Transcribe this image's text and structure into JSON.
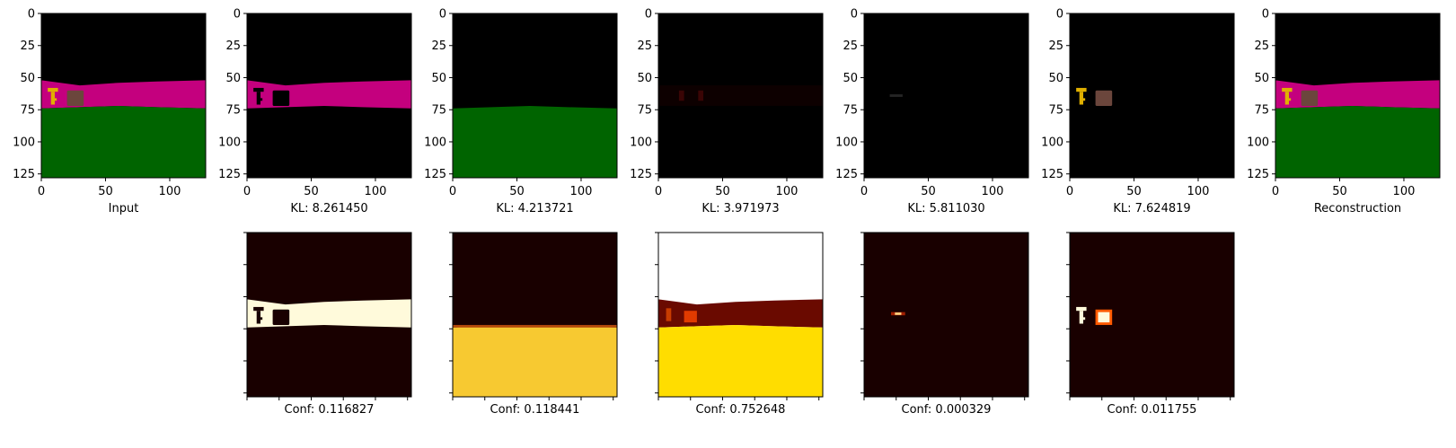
{
  "figure": {
    "colors": {
      "black": "#000000",
      "magenta": "#c4007e",
      "green": "#006400",
      "key_yellow": "#e0b000",
      "box_brown": "#6b463c",
      "heat_dark": "#190000",
      "heat_bright": "#fffadb",
      "heat_yellow": "#ffdd00"
    },
    "top_row": [
      {
        "caption": "Input",
        "content": "scene_full"
      },
      {
        "caption": "KL: 8.261450",
        "content": "wall_band"
      },
      {
        "caption": "KL: 4.213721",
        "content": "floor"
      },
      {
        "caption": "KL: 3.971973",
        "content": "faint_objects"
      },
      {
        "caption": "KL: 5.811030",
        "content": "faint_dot"
      },
      {
        "caption": "KL: 7.624819",
        "content": "objects_only"
      },
      {
        "caption": "Reconstruction",
        "content": "scene_full"
      }
    ],
    "bottom_row": [
      {
        "caption": "Conf: 0.116827",
        "content": "heat_band"
      },
      {
        "caption": "Conf: 0.118441",
        "content": "heat_floor"
      },
      {
        "caption": "Conf: 0.752648",
        "content": "heat_sky_floor"
      },
      {
        "caption": "Conf: 0.000329",
        "content": "heat_dot"
      },
      {
        "caption": "Conf: 0.011755",
        "content": "heat_objects"
      }
    ]
  },
  "chart_data": {
    "type": "heatmap",
    "image_size": [
      128,
      128
    ],
    "x_ticks": [
      "0",
      "50",
      "100"
    ],
    "y_ticks": [
      "0",
      "25",
      "50",
      "75",
      "100",
      "125"
    ],
    "top_row_captions": [
      "Input",
      "KL: 8.261450",
      "KL: 4.213721",
      "KL: 3.971973",
      "KL: 5.811030",
      "KL: 7.624819",
      "Reconstruction"
    ],
    "kl_values": [
      8.26145,
      4.213721,
      3.971973,
      5.81103,
      7.624819
    ],
    "bottom_row_captions": [
      "Conf: 0.116827",
      "Conf: 0.118441",
      "Conf: 0.752648",
      "Conf: 0.000329",
      "Conf: 0.011755"
    ],
    "conf_values": [
      0.116827,
      0.118441,
      0.752648,
      0.000329,
      0.011755
    ]
  }
}
